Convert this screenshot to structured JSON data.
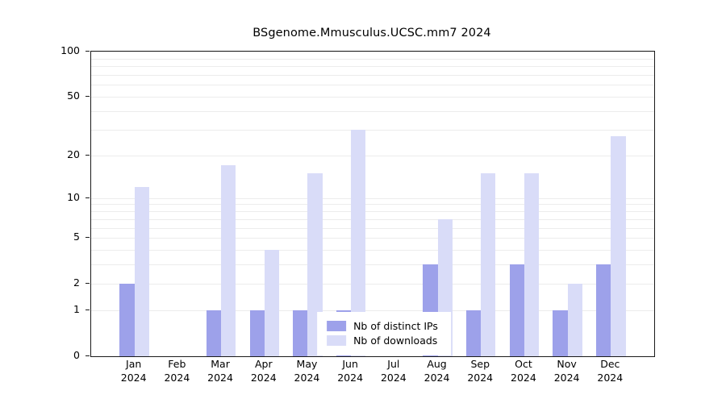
{
  "chart_data": {
    "type": "bar",
    "title": "BSgenome.Mmusculus.UCSC.mm7 2024",
    "xlabel": "",
    "ylabel": "",
    "yscale": "log1p",
    "ylim": [
      0,
      100
    ],
    "yticks": [
      0,
      1,
      2,
      5,
      10,
      20,
      50,
      100
    ],
    "grid": true,
    "grid_values": [
      1,
      2,
      3,
      4,
      5,
      6,
      7,
      8,
      9,
      10,
      20,
      30,
      40,
      50,
      60,
      70,
      80,
      90,
      100
    ],
    "categories": [
      "Jan 2024",
      "Feb 2024",
      "Mar 2024",
      "Apr 2024",
      "May 2024",
      "Jun 2024",
      "Jul 2024",
      "Aug 2024",
      "Sep 2024",
      "Oct 2024",
      "Nov 2024",
      "Dec 2024"
    ],
    "series": [
      {
        "name": "Nb of distinct IPs",
        "color": "#9da1ea",
        "values": [
          2,
          0,
          1,
          1,
          1,
          1,
          0,
          3,
          1,
          3,
          1,
          3
        ]
      },
      {
        "name": "Nb of downloads",
        "color": "#d9dcf8",
        "values": [
          12,
          0,
          17,
          4,
          15,
          30,
          0,
          7,
          15,
          15,
          2,
          27
        ]
      }
    ],
    "legend_position": "bottom-center-inside"
  }
}
